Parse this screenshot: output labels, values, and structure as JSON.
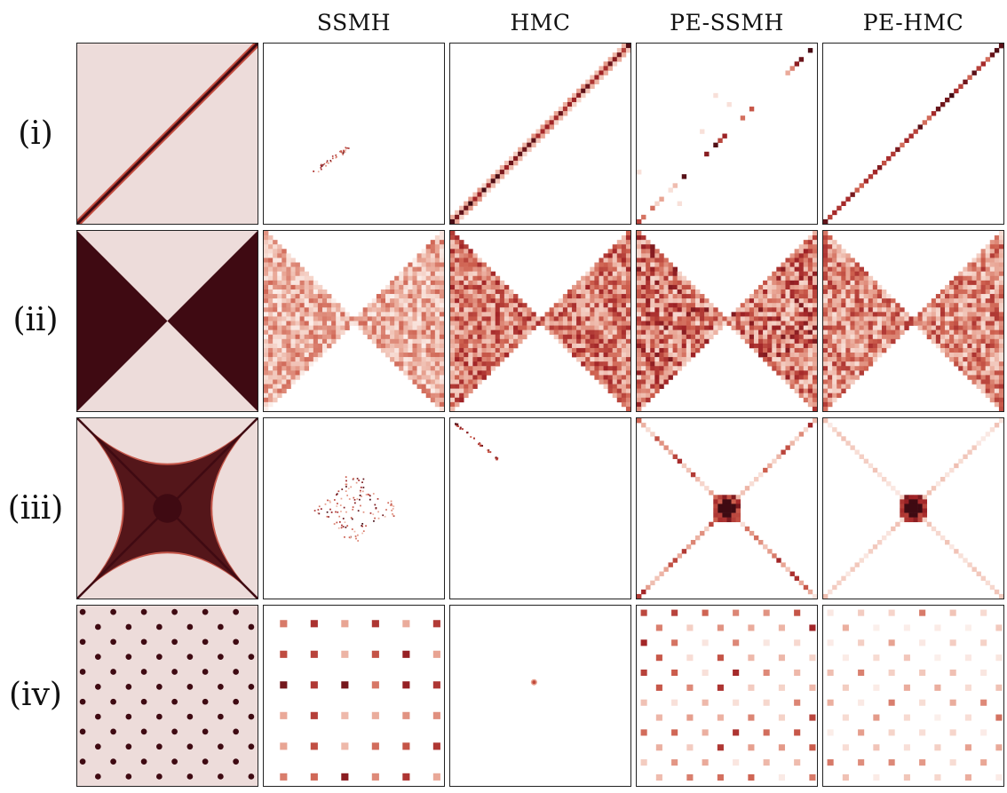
{
  "columns": [
    {
      "key": "target",
      "title": ""
    },
    {
      "key": "ssmh",
      "title": "SSMH"
    },
    {
      "key": "hmc",
      "title": "HMC"
    },
    {
      "key": "pe_ssmh",
      "title": "PE-SSMH"
    },
    {
      "key": "pe_hmc",
      "title": "PE-HMC"
    }
  ],
  "rows": [
    {
      "key": "i",
      "label": "(i)"
    },
    {
      "key": "ii",
      "label": "(ii)"
    },
    {
      "key": "iii",
      "label": "(iii)"
    },
    {
      "key": "iv",
      "label": "(iv)"
    }
  ],
  "colors": {
    "background": "#eddcda",
    "dark": "#3f0a12",
    "mid": "#c14a3c",
    "light": "#e8a493",
    "border": "#222222"
  }
}
